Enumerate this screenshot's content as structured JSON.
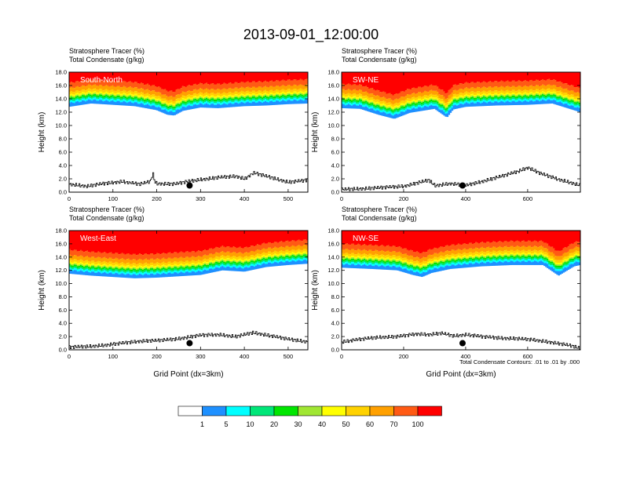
{
  "figure": {
    "title": "2013-09-01_12:00:00",
    "contour_note": "Total Condensate Contours: .01 to .01 by .000"
  },
  "colorbar": {
    "colors": [
      "#ffffff",
      "#1e90ff",
      "#00ffff",
      "#00e678",
      "#00e600",
      "#a0e632",
      "#ffff00",
      "#ffd200",
      "#ffa000",
      "#ff5a14",
      "#ff0000"
    ],
    "labels": [
      "1",
      "5",
      "10",
      "20",
      "30",
      "40",
      "50",
      "60",
      "70",
      "100"
    ]
  },
  "chart_data": [
    {
      "type": "heatmap",
      "panel": "South-North",
      "title": "South-North",
      "subtitle_1": "Stratosphere Tracer   (%)",
      "subtitle_2": "Total Condensate   (g/kg)",
      "xlabel": "",
      "ylabel": "Height (km)",
      "xlim": [
        0,
        545
      ],
      "ylim": [
        0,
        18
      ],
      "xticks": [
        "0",
        "100",
        "200",
        "300",
        "400",
        "500"
      ],
      "xtick_values": [
        0,
        100,
        200,
        300,
        400,
        500
      ],
      "yticks": [
        "0.0",
        "2.0",
        "4.0",
        "6.0",
        "8.0",
        "10.0",
        "12.0",
        "14.0",
        "16.0",
        "18.0"
      ],
      "tracer_base_x": [
        0,
        50,
        100,
        150,
        200,
        225,
        240,
        260,
        300,
        340,
        400,
        450,
        500,
        545
      ],
      "tracer_base_km": [
        12.8,
        13.3,
        13.1,
        12.9,
        12.3,
        11.6,
        11.5,
        12.2,
        12.7,
        12.6,
        12.9,
        13.0,
        13.2,
        13.3
      ],
      "terrain_x": [
        0,
        40,
        80,
        120,
        160,
        185,
        190,
        195,
        200,
        240,
        270,
        300,
        340,
        380,
        400,
        420,
        460,
        500,
        545
      ],
      "terrain_km": [
        1.2,
        0.9,
        1.3,
        1.6,
        1.2,
        1.6,
        2.9,
        1.5,
        1.3,
        1.2,
        1.6,
        1.9,
        2.2,
        2.4,
        2.0,
        2.9,
        2.2,
        1.5,
        1.8
      ],
      "marker_x": 275,
      "marker_km": 1.0
    },
    {
      "type": "heatmap",
      "panel": "SW-NE",
      "title": "SW-NE",
      "subtitle_1": "Stratosphere Tracer   (%)",
      "subtitle_2": "Total Condensate   (g/kg)",
      "xlabel": "",
      "ylabel": "Height (km)",
      "xlim": [
        0,
        770
      ],
      "ylim": [
        0,
        18
      ],
      "xticks": [
        "0",
        "200",
        "400",
        "600"
      ],
      "xtick_values": [
        0,
        200,
        400,
        600
      ],
      "yticks": [
        "0.0",
        "2.0",
        "4.0",
        "6.0",
        "8.0",
        "10.0",
        "12.0",
        "14.0",
        "16.0",
        "18.0"
      ],
      "tracer_base_x": [
        0,
        60,
        120,
        170,
        220,
        300,
        340,
        360,
        400,
        500,
        600,
        680,
        770
      ],
      "tracer_base_km": [
        12.6,
        12.5,
        11.6,
        11.0,
        11.9,
        12.5,
        11.2,
        12.4,
        12.8,
        13.0,
        13.1,
        13.3,
        12.0
      ],
      "terrain_x": [
        0,
        100,
        200,
        280,
        300,
        350,
        400,
        450,
        500,
        560,
        600,
        640,
        700,
        740,
        770
      ],
      "terrain_km": [
        0.4,
        0.6,
        0.9,
        1.8,
        1.0,
        1.3,
        1.0,
        1.6,
        2.2,
        3.0,
        3.7,
        2.8,
        1.9,
        1.4,
        1.0
      ],
      "marker_x": 390,
      "marker_km": 1.0
    },
    {
      "type": "heatmap",
      "panel": "West-East",
      "title": "West-East",
      "subtitle_1": "Stratosphere Tracer   (%)",
      "subtitle_2": "Total Condensate   (g/kg)",
      "xlabel": "Grid Point (dx=3km)",
      "ylabel": "Height (km)",
      "xlim": [
        0,
        545
      ],
      "ylim": [
        0,
        18
      ],
      "xticks": [
        "0",
        "100",
        "200",
        "300",
        "400",
        "500"
      ],
      "xtick_values": [
        0,
        100,
        200,
        300,
        400,
        500
      ],
      "yticks": [
        "0.0",
        "2.0",
        "4.0",
        "6.0",
        "8.0",
        "10.0",
        "12.0",
        "14.0",
        "16.0",
        "18.0"
      ],
      "tracer_base_x": [
        0,
        50,
        100,
        150,
        200,
        250,
        300,
        350,
        400,
        450,
        500,
        545
      ],
      "tracer_base_km": [
        11.5,
        11.2,
        11.0,
        10.8,
        10.9,
        11.1,
        11.3,
        12.0,
        11.8,
        12.5,
        12.8,
        13.0
      ],
      "terrain_x": [
        0,
        40,
        80,
        120,
        160,
        200,
        240,
        270,
        300,
        340,
        380,
        420,
        460,
        500,
        545
      ],
      "terrain_km": [
        0.4,
        0.5,
        0.7,
        1.0,
        1.3,
        1.4,
        1.6,
        1.9,
        2.2,
        2.3,
        2.0,
        2.6,
        2.1,
        1.6,
        1.2
      ],
      "marker_x": 275,
      "marker_km": 1.0
    },
    {
      "type": "heatmap",
      "panel": "NW-SE",
      "title": "NW-SE",
      "subtitle_1": "Stratosphere Tracer   (%)",
      "subtitle_2": "Total Condensate   (g/kg)",
      "xlabel": "Grid Point (dx=3km)",
      "ylabel": "Height (km)",
      "xlim": [
        0,
        770
      ],
      "ylim": [
        0,
        18
      ],
      "xticks": [
        "0",
        "200",
        "400",
        "600"
      ],
      "xtick_values": [
        0,
        200,
        400,
        600
      ],
      "yticks": [
        "0.0",
        "2.0",
        "4.0",
        "6.0",
        "8.0",
        "10.0",
        "12.0",
        "14.0",
        "16.0",
        "18.0"
      ],
      "tracer_base_x": [
        0,
        100,
        180,
        230,
        260,
        290,
        350,
        450,
        550,
        650,
        700,
        750,
        770
      ],
      "tracer_base_km": [
        12.4,
        12.2,
        12.0,
        11.3,
        11.0,
        11.6,
        12.2,
        12.6,
        12.8,
        12.8,
        11.2,
        12.6,
        12.8
      ],
      "terrain_x": [
        0,
        60,
        120,
        180,
        240,
        280,
        320,
        360,
        400,
        450,
        500,
        560,
        620,
        680,
        740,
        770
      ],
      "terrain_km": [
        1.2,
        1.6,
        1.9,
        2.0,
        2.4,
        2.3,
        2.5,
        2.1,
        2.3,
        2.0,
        1.8,
        1.7,
        1.5,
        1.1,
        0.6,
        0.2
      ],
      "marker_x": 390,
      "marker_km": 1.0
    }
  ]
}
